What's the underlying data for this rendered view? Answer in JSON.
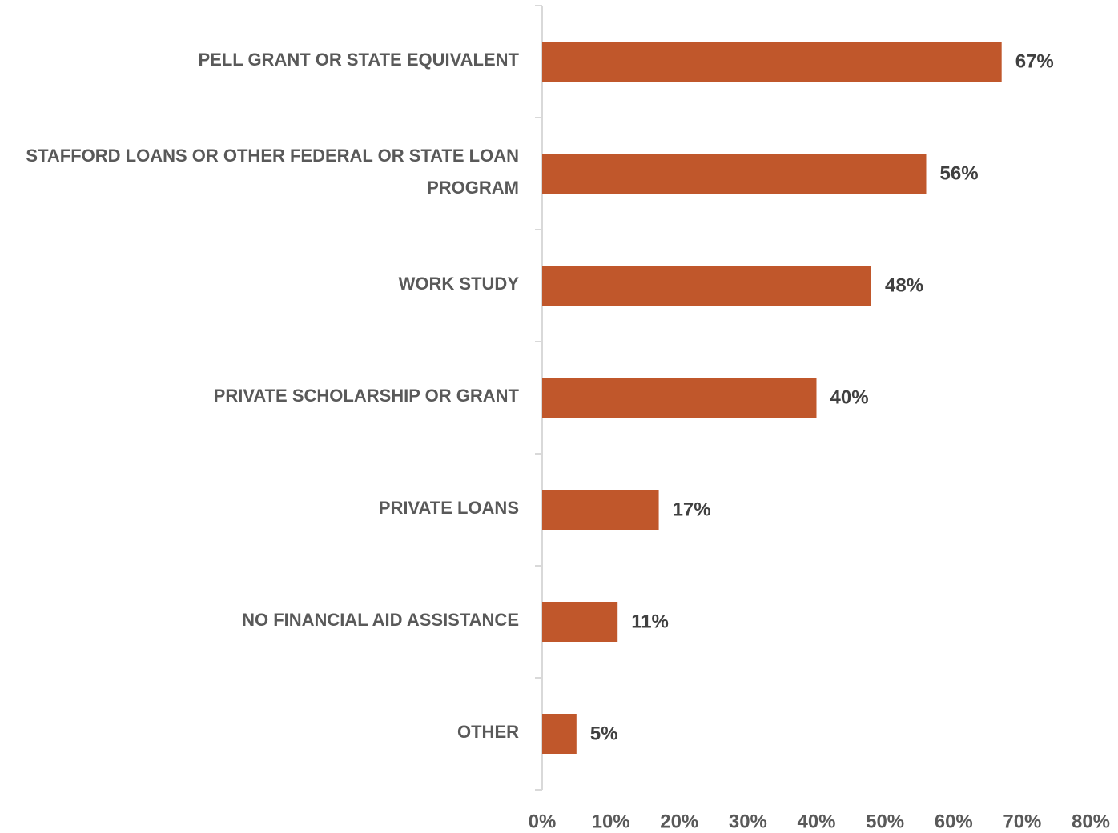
{
  "chart_data": {
    "type": "bar",
    "orientation": "horizontal",
    "categories": [
      "PELL GRANT OR STATE EQUIVALENT",
      "STAFFORD LOANS OR OTHER FEDERAL OR STATE LOAN PROGRAM",
      "WORK STUDY",
      "PRIVATE SCHOLARSHIP OR GRANT",
      "PRIVATE LOANS",
      "NO FINANCIAL AID ASSISTANCE",
      "OTHER"
    ],
    "values": [
      67,
      56,
      48,
      40,
      17,
      11,
      5
    ],
    "value_labels": [
      "67%",
      "56%",
      "48%",
      "40%",
      "17%",
      "11%",
      "5%"
    ],
    "color": "#c0572b",
    "xlim": [
      0,
      80
    ],
    "xticks": [
      {
        "value": 0,
        "label": "0%"
      },
      {
        "value": 10,
        "label": "10%"
      },
      {
        "value": 20,
        "label": "20%"
      },
      {
        "value": 30,
        "label": "30%"
      },
      {
        "value": 40,
        "label": "40%"
      },
      {
        "value": 50,
        "label": "50%"
      },
      {
        "value": 60,
        "label": "60%"
      },
      {
        "value": 70,
        "label": "70%"
      },
      {
        "value": 80,
        "label": "80%"
      }
    ],
    "grid": false
  }
}
